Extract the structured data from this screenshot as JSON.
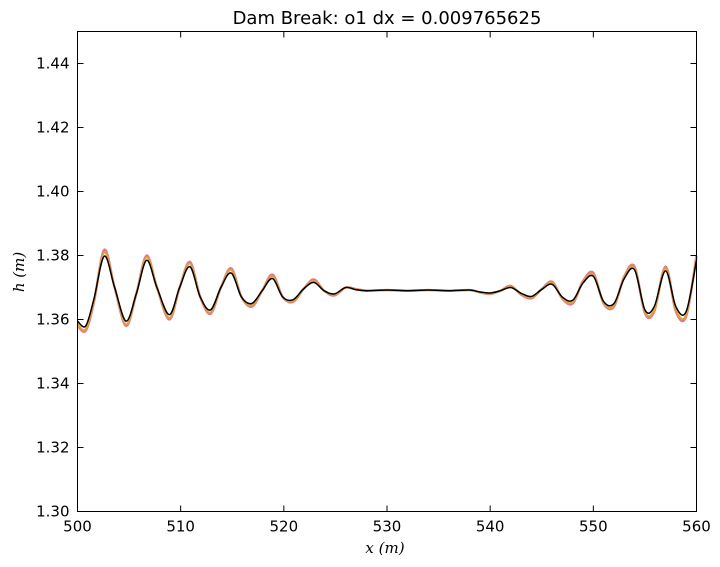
{
  "chart_data": {
    "type": "line",
    "title": "Dam Break: o1 dx = 0.009765625",
    "xlabel": "x (m)",
    "ylabel": "h (m)",
    "xlim": [
      500,
      560
    ],
    "ylim": [
      1.3,
      1.45
    ],
    "xticks": [
      "500",
      "510",
      "520",
      "530",
      "540",
      "550",
      "560"
    ],
    "yticks": [
      "1.30",
      "1.32",
      "1.34",
      "1.36",
      "1.38",
      "1.40",
      "1.42",
      "1.44"
    ],
    "grid": false,
    "legend": "none",
    "series": [
      {
        "color": "#e07a8a",
        "x": [
          500.0,
          500.8,
          501.6,
          502.6,
          503.6,
          504.7,
          505.7,
          506.7,
          507.7,
          508.9,
          509.9,
          510.9,
          511.9,
          512.9,
          513.9,
          514.9,
          515.9,
          516.9,
          517.9,
          518.9,
          519.9,
          520.9,
          521.9,
          522.9,
          523.9,
          524.9,
          526.0,
          527.0,
          528.0,
          530.0,
          532.0,
          534.0,
          536.0,
          538.0,
          539.0,
          540.0,
          541.0,
          542.0,
          543.0,
          544.0,
          545.0,
          546.0,
          547.0,
          548.0,
          549.0,
          550.0,
          551.0,
          552.0,
          553.0,
          554.0,
          555.0,
          555.9,
          557.0,
          558.0,
          559.0,
          560.0
        ],
        "y": [
          1.358,
          1.3565,
          1.3655,
          1.3818,
          1.37,
          1.358,
          1.368,
          1.38,
          1.37,
          1.36,
          1.37,
          1.378,
          1.367,
          1.3618,
          1.37,
          1.376,
          1.367,
          1.364,
          1.369,
          1.374,
          1.367,
          1.3655,
          1.3695,
          1.3725,
          1.369,
          1.3675,
          1.37,
          1.3695,
          1.369,
          1.3692,
          1.369,
          1.3692,
          1.369,
          1.3692,
          1.3685,
          1.368,
          1.369,
          1.3705,
          1.3678,
          1.3666,
          1.3695,
          1.3718,
          1.3665,
          1.365,
          1.372,
          1.3746,
          1.365,
          1.364,
          1.3735,
          1.3765,
          1.362,
          1.3625,
          1.3765,
          1.3625,
          1.361,
          1.38
        ]
      },
      {
        "color": "#e0a040",
        "x": [
          500.0,
          500.8,
          501.6,
          502.6,
          503.6,
          504.7,
          505.7,
          506.7,
          507.7,
          508.9,
          509.9,
          510.9,
          511.9,
          512.9,
          513.9,
          514.9,
          515.9,
          516.9,
          517.9,
          518.9,
          519.9,
          520.9,
          521.9,
          522.9,
          523.9,
          524.9,
          526.0,
          527.0,
          528.0,
          530.0,
          532.0,
          534.0,
          536.0,
          538.0,
          539.0,
          540.0,
          541.0,
          542.0,
          543.0,
          544.0,
          545.0,
          546.0,
          547.0,
          548.0,
          549.0,
          550.0,
          551.0,
          552.0,
          553.0,
          554.0,
          555.0,
          555.9,
          557.0,
          558.0,
          559.0,
          560.0
        ],
        "y": [
          1.3585,
          1.357,
          1.366,
          1.381,
          1.37,
          1.3585,
          1.368,
          1.3795,
          1.37,
          1.3605,
          1.37,
          1.3775,
          1.367,
          1.3622,
          1.37,
          1.3755,
          1.367,
          1.3644,
          1.369,
          1.3735,
          1.367,
          1.3658,
          1.3695,
          1.3721,
          1.369,
          1.3678,
          1.37,
          1.3694,
          1.369,
          1.3692,
          1.369,
          1.3692,
          1.369,
          1.3692,
          1.3685,
          1.3681,
          1.369,
          1.3702,
          1.368,
          1.3669,
          1.3695,
          1.3714,
          1.3667,
          1.3654,
          1.3718,
          1.3741,
          1.3652,
          1.3644,
          1.3732,
          1.376,
          1.3624,
          1.363,
          1.376,
          1.363,
          1.3615,
          1.3795
        ]
      },
      {
        "color": "#000000",
        "x": [
          500.0,
          500.8,
          501.6,
          502.6,
          503.6,
          504.7,
          505.7,
          506.7,
          507.7,
          508.9,
          509.9,
          510.9,
          511.9,
          512.9,
          513.9,
          514.9,
          515.9,
          516.9,
          517.9,
          518.9,
          519.9,
          520.9,
          521.9,
          522.9,
          523.9,
          524.9,
          526.0,
          527.0,
          528.0,
          530.0,
          532.0,
          534.0,
          536.0,
          538.0,
          539.0,
          540.0,
          541.0,
          542.0,
          543.0,
          544.0,
          545.0,
          546.0,
          547.0,
          548.0,
          549.0,
          550.0,
          551.0,
          552.0,
          553.0,
          554.0,
          555.0,
          555.9,
          557.0,
          558.0,
          559.0,
          560.0
        ],
        "y": [
          1.3595,
          1.358,
          1.3665,
          1.3798,
          1.37,
          1.3595,
          1.368,
          1.3785,
          1.37,
          1.3615,
          1.37,
          1.3765,
          1.367,
          1.363,
          1.37,
          1.3745,
          1.367,
          1.365,
          1.369,
          1.3728,
          1.367,
          1.3662,
          1.3695,
          1.3716,
          1.369,
          1.368,
          1.37,
          1.3693,
          1.369,
          1.3692,
          1.369,
          1.3692,
          1.369,
          1.3692,
          1.3686,
          1.3683,
          1.369,
          1.37,
          1.3682,
          1.3672,
          1.3694,
          1.371,
          1.367,
          1.366,
          1.3714,
          1.3735,
          1.3656,
          1.365,
          1.3728,
          1.3755,
          1.363,
          1.364,
          1.3752,
          1.364,
          1.3625,
          1.3785
        ]
      }
    ]
  }
}
